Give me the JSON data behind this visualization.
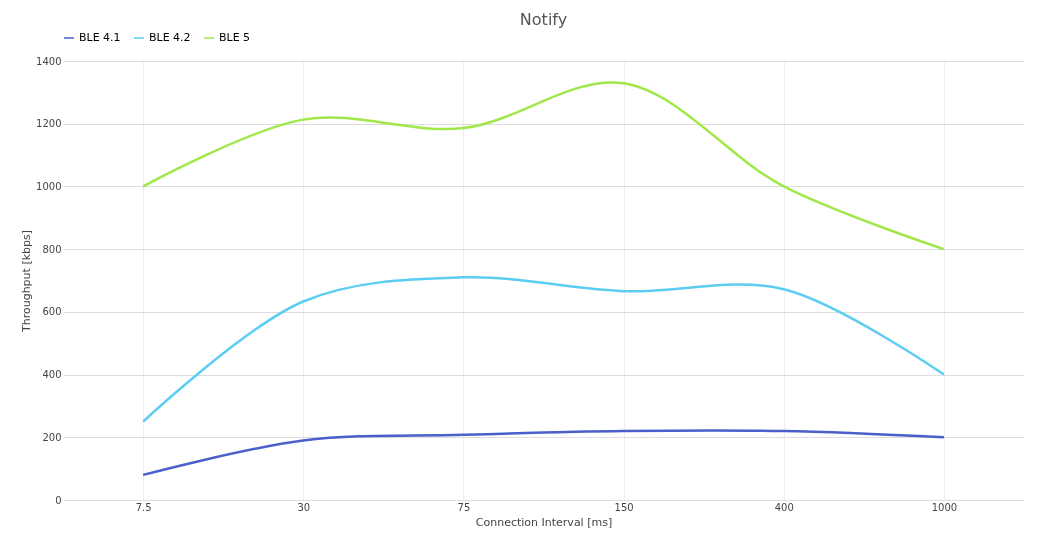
{
  "chart_data": {
    "type": "line",
    "title": "Notify",
    "xlabel": "Connection Interval [ms]",
    "ylabel": "Throughput [kbps]",
    "categories": [
      "7.5",
      "30",
      "75",
      "150",
      "400",
      "1000"
    ],
    "series": [
      {
        "name": "BLE 4.1",
        "color": "#4a5fc9",
        "values": [
          80,
          190,
          208,
          220,
          220,
          200
        ]
      },
      {
        "name": "BLE 4.2",
        "color": "#5bcdf2",
        "values": [
          250,
          633,
          710,
          666,
          672,
          400
        ]
      },
      {
        "name": "BLE 5",
        "color": "#a0e84a",
        "values": [
          1000,
          1213,
          1186,
          1329,
          1000,
          800
        ]
      }
    ],
    "ylim": [
      0,
      1400
    ],
    "yticks": [
      0,
      200,
      400,
      600,
      800,
      1000,
      1200,
      1400
    ],
    "grid": true,
    "legend": "top",
    "marker": "none",
    "line_style": "solid"
  }
}
